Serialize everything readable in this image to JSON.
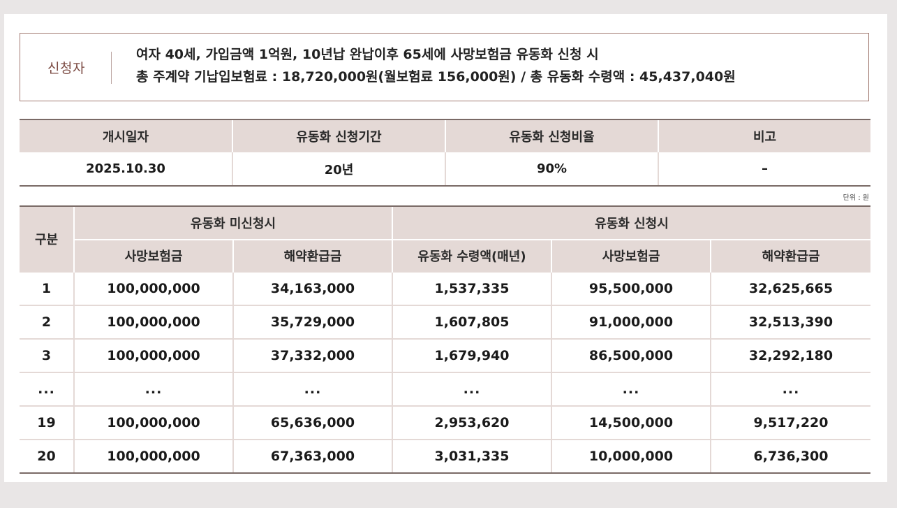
{
  "applicant": {
    "label": "신청자",
    "line1": "여자 40세, 가입금액 1억원, 10년납 완납이후 65세에 사망보험금 유동화 신청 시",
    "line2": "총 주계약 기납입보험료 : 18,720,000원(월보험료 156,000원) / 총 유동화 수령액 : 45,437,040원"
  },
  "info_table": {
    "headers": [
      "개시일자",
      "유동화 신청기간",
      "유동화 신청비율",
      "비고"
    ],
    "values": [
      "2025.10.30",
      "20년",
      "90%",
      "–"
    ]
  },
  "unit_label": "단위 : 원",
  "main_table": {
    "col_gubun": "구분",
    "group_unapplied": "유동화 미신청시",
    "group_applied": "유동화 신청시",
    "sub_headers": [
      "사망보험금",
      "해약환급금",
      "유동화 수령액(매년)",
      "사망보험금",
      "해약환급금"
    ],
    "rows": [
      [
        "1",
        "100,000,000",
        "34,163,000",
        "1,537,335",
        "95,500,000",
        "32,625,665"
      ],
      [
        "2",
        "100,000,000",
        "35,729,000",
        "1,607,805",
        "91,000,000",
        "32,513,390"
      ],
      [
        "3",
        "100,000,000",
        "37,332,000",
        "1,679,940",
        "86,500,000",
        "32,292,180"
      ],
      [
        "...",
        "...",
        "...",
        "...",
        "...",
        "..."
      ],
      [
        "19",
        "100,000,000",
        "65,636,000",
        "2,953,620",
        "14,500,000",
        "9,517,220"
      ],
      [
        "20",
        "100,000,000",
        "67,363,000",
        "3,031,335",
        "10,000,000",
        "6,736,300"
      ]
    ]
  }
}
